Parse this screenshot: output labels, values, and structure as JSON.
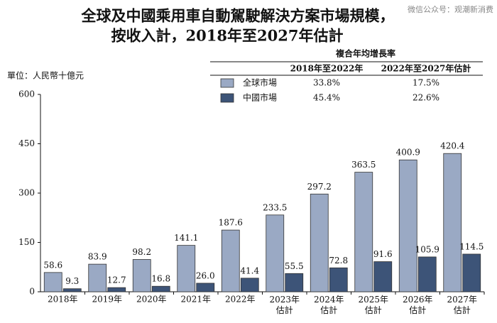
{
  "chart_data": {
    "type": "bar",
    "title_lines": [
      "全球及中國乘用車自動駕駛解決方案市場規模，",
      "按收入計，2018年至2027年估計"
    ],
    "watermark": "微信公众号：观潮新消费",
    "y_label": "單位：人民幣十億元",
    "categories": [
      "2018年",
      "2019年",
      "2020年",
      "2021年",
      "2022年",
      "2023年\n估計",
      "2024年\n估計",
      "2025年\n估計",
      "2026年\n估計",
      "2027年\n估計"
    ],
    "series": [
      {
        "name": "全球市場",
        "color": "#9aa9c4",
        "values": [
          58.6,
          83.9,
          98.2,
          141.1,
          187.6,
          233.5,
          297.2,
          363.5,
          400.9,
          420.4
        ]
      },
      {
        "name": "中國市場",
        "color": "#3d5478",
        "values": [
          9.3,
          12.7,
          16.8,
          26.0,
          41.4,
          55.5,
          72.8,
          91.6,
          105.9,
          114.5
        ],
        "value_labels": [
          "9.3",
          "12.7",
          "16.8",
          "26.0",
          "41.4",
          "55.5",
          "72.8",
          "91.6",
          "105.9",
          "114.5"
        ]
      }
    ],
    "cagr_table": {
      "header": "複合年均增長率",
      "columns": [
        "2018年至2022年",
        "2022年至2027年估計"
      ],
      "rows": [
        [
          "33.8%",
          "17.5%"
        ],
        [
          "45.4%",
          "22.6%"
        ]
      ]
    },
    "ylim": [
      0,
      600
    ],
    "yticks": [
      0,
      150,
      300,
      450,
      600
    ],
    "grid": false
  }
}
